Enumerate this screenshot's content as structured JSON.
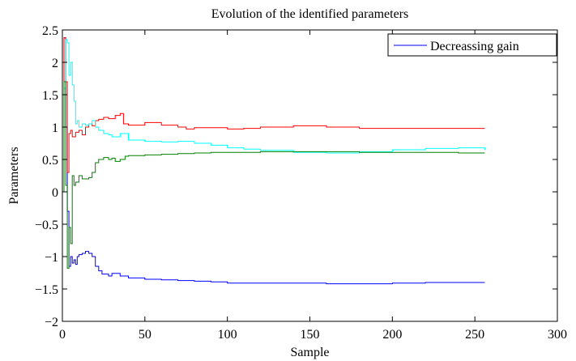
{
  "chart_data": {
    "type": "line",
    "title": "Evolution of the identified parameters",
    "xlabel": "Sample",
    "ylabel": "Parameters",
    "xlim": [
      0,
      300
    ],
    "ylim": [
      -2,
      2.5
    ],
    "xticks": [
      0,
      50,
      100,
      150,
      200,
      250,
      300
    ],
    "yticks": [
      -2,
      -1.5,
      -1,
      -0.5,
      0,
      0.5,
      1,
      1.5,
      2,
      2.5
    ],
    "xtick_labels": [
      "0",
      "50",
      "100",
      "150",
      "200",
      "250",
      "300"
    ],
    "ytick_labels": [
      "−2",
      "−1.5",
      "−1",
      "−0.5",
      "0",
      "0.5",
      "1",
      "1.5",
      "2",
      "2.5"
    ],
    "grid": false,
    "legend": {
      "entries": [
        "Decreassing gain"
      ],
      "position": "top-right"
    },
    "step": true,
    "series": [
      {
        "name": "Decreassing gain",
        "color": "#0000ff",
        "x": [
          0,
          1,
          2,
          3,
          4,
          5,
          6,
          7,
          8,
          9,
          10,
          12,
          14,
          16,
          18,
          20,
          22,
          24,
          28,
          30,
          35,
          40,
          50,
          60,
          70,
          80,
          90,
          100,
          120,
          140,
          160,
          170,
          180,
          200,
          220,
          240,
          256
        ],
        "y": [
          0,
          2.38,
          1.0,
          -0.3,
          -1.15,
          -1.0,
          -1.1,
          -1.05,
          -1.12,
          -1.0,
          -0.97,
          -0.95,
          -0.92,
          -0.95,
          -1.0,
          -1.15,
          -1.22,
          -1.27,
          -1.3,
          -1.26,
          -1.3,
          -1.33,
          -1.35,
          -1.36,
          -1.37,
          -1.38,
          -1.39,
          -1.41,
          -1.41,
          -1.41,
          -1.42,
          -1.42,
          -1.42,
          -1.41,
          -1.4,
          -1.4,
          -1.4
        ]
      },
      {
        "color": "#ff0000",
        "x": [
          0,
          1,
          2,
          3,
          4,
          5,
          6,
          8,
          10,
          12,
          14,
          16,
          18,
          20,
          22,
          25,
          28,
          32,
          35,
          37,
          40,
          50,
          60,
          70,
          75,
          80,
          90,
          100,
          110,
          120,
          140,
          160,
          180,
          200,
          220,
          240,
          256
        ],
        "y": [
          0,
          2.38,
          1.7,
          0.3,
          0.9,
          0.95,
          0.85,
          0.92,
          0.95,
          0.88,
          1.0,
          1.05,
          1.02,
          1.1,
          1.12,
          1.15,
          1.13,
          1.18,
          1.21,
          1.05,
          1.03,
          1.07,
          1.03,
          1.0,
          0.97,
          0.99,
          0.99,
          0.97,
          0.98,
          1.0,
          1.02,
          1.0,
          0.98,
          0.98,
          0.98,
          0.98,
          0.98
        ]
      },
      {
        "color": "#00ffff",
        "x": [
          0,
          1,
          2,
          3,
          4,
          5,
          6,
          7,
          8,
          9,
          10,
          12,
          14,
          16,
          18,
          20,
          22,
          25,
          28,
          30,
          35,
          40,
          50,
          60,
          70,
          80,
          90,
          100,
          110,
          120,
          140,
          160,
          180,
          200,
          220,
          240,
          256
        ],
        "y": [
          0,
          1.6,
          2.35,
          2.3,
          1.8,
          2.0,
          1.65,
          1.4,
          1.05,
          1.1,
          1.0,
          1.05,
          1.03,
          1.05,
          1.1,
          1.0,
          0.95,
          0.9,
          0.88,
          0.85,
          0.9,
          0.8,
          0.78,
          0.77,
          0.78,
          0.75,
          0.72,
          0.68,
          0.66,
          0.64,
          0.61,
          0.6,
          0.62,
          0.65,
          0.67,
          0.68,
          0.65
        ]
      },
      {
        "color": "#008000",
        "x": [
          0,
          1,
          2,
          3,
          4,
          5,
          6,
          7,
          8,
          10,
          12,
          14,
          16,
          18,
          20,
          22,
          25,
          28,
          30,
          32,
          35,
          38,
          40,
          50,
          60,
          70,
          80,
          90,
          100,
          120,
          140,
          160,
          180,
          200,
          220,
          240,
          256
        ],
        "y": [
          0,
          1.7,
          0.1,
          -1.18,
          -0.55,
          -0.8,
          0.25,
          0.1,
          0.15,
          0.25,
          0.2,
          0.2,
          0.22,
          0.3,
          0.45,
          0.5,
          0.53,
          0.5,
          0.52,
          0.47,
          0.5,
          0.55,
          0.56,
          0.57,
          0.58,
          0.59,
          0.6,
          0.61,
          0.61,
          0.62,
          0.62,
          0.62,
          0.61,
          0.61,
          0.61,
          0.6,
          0.6
        ]
      }
    ]
  }
}
